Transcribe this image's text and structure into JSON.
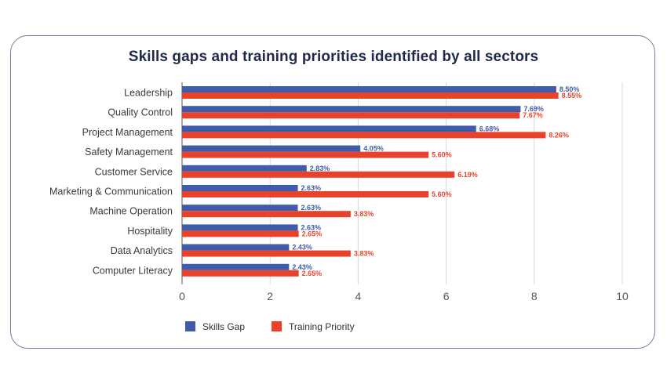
{
  "chart_data": {
    "type": "bar",
    "orientation": "horizontal",
    "title": "Skills gaps and training priorities identified by all sectors",
    "categories": [
      "Leadership",
      "Quality Control",
      "Project Management",
      "Safety Management",
      "Customer Service",
      "Marketing & Communication",
      "Machine Operation",
      "Hospitality",
      "Data Analytics",
      "Computer Literacy"
    ],
    "series": [
      {
        "name": "Skills Gap",
        "color": "#3f5ba9",
        "values": [
          8.5,
          7.69,
          6.68,
          4.05,
          2.83,
          2.63,
          2.63,
          2.63,
          2.43,
          2.43
        ],
        "labels": [
          "8.50%",
          "7.69%",
          "6.68%",
          "4.05%",
          "2.83%",
          "2.63%",
          "2.63%",
          "2.63%",
          "2.43%",
          "2.43%"
        ]
      },
      {
        "name": "Training Priority",
        "color": "#e8432a",
        "values": [
          8.55,
          7.67,
          8.26,
          5.6,
          6.19,
          5.6,
          3.83,
          2.65,
          3.83,
          2.65
        ],
        "labels": [
          "8.55%",
          "7.67%",
          "8.26%",
          "5.60%",
          "6.19%",
          "5.60%",
          "3.83%",
          "2.65%",
          "3.83%",
          "2.65%"
        ]
      }
    ],
    "xlim": [
      0,
      10
    ],
    "xticks": [
      "0",
      "2",
      "4",
      "6",
      "8",
      "10"
    ],
    "grid": "vertical",
    "legend": "bottom-left"
  }
}
